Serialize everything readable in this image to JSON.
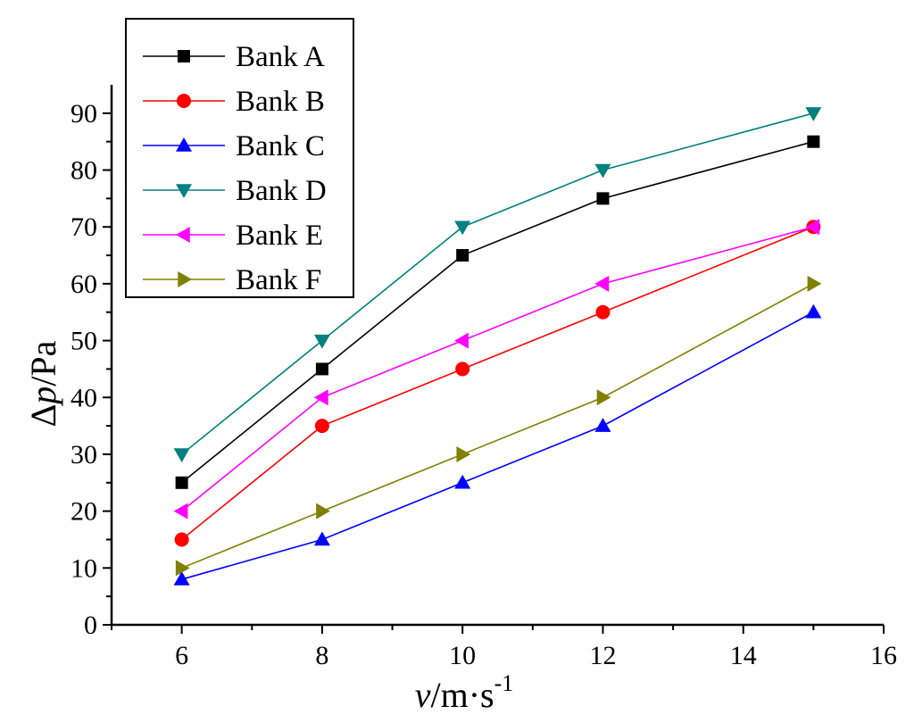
{
  "chart_data": {
    "type": "line",
    "title": "",
    "xlabel": {
      "var": "v",
      "rest": "/m·s",
      "sup": "-1"
    },
    "ylabel": {
      "prefix": "Δ",
      "var": "p",
      "rest": "/Pa"
    },
    "xlim": [
      5,
      16
    ],
    "ylim": [
      0,
      95
    ],
    "x_ticks": [
      6,
      8,
      10,
      12,
      14,
      16
    ],
    "y_ticks": [
      0,
      10,
      20,
      30,
      40,
      50,
      60,
      70,
      80,
      90
    ],
    "x": [
      6,
      8,
      10,
      12,
      15
    ],
    "legend_position": "top-left",
    "grid": false,
    "series": [
      {
        "name": "Bank A",
        "color": "#000000",
        "marker": "square",
        "values": [
          25,
          45,
          65,
          75,
          85
        ]
      },
      {
        "name": "Bank B",
        "color": "#ff0000",
        "marker": "circle",
        "values": [
          15,
          35,
          45,
          55,
          70
        ]
      },
      {
        "name": "Bank C",
        "color": "#0000ff",
        "marker": "triangle-up",
        "values": [
          8,
          15,
          25,
          35,
          55
        ]
      },
      {
        "name": "Bank D",
        "color": "#008080",
        "marker": "triangle-down",
        "values": [
          30,
          50,
          70,
          80,
          90
        ]
      },
      {
        "name": "Bank E",
        "color": "#ff00ff",
        "marker": "triangle-left",
        "values": [
          20,
          40,
          50,
          60,
          70
        ]
      },
      {
        "name": "Bank F",
        "color": "#808000",
        "marker": "triangle-right",
        "values": [
          10,
          20,
          30,
          40,
          60
        ]
      }
    ]
  }
}
